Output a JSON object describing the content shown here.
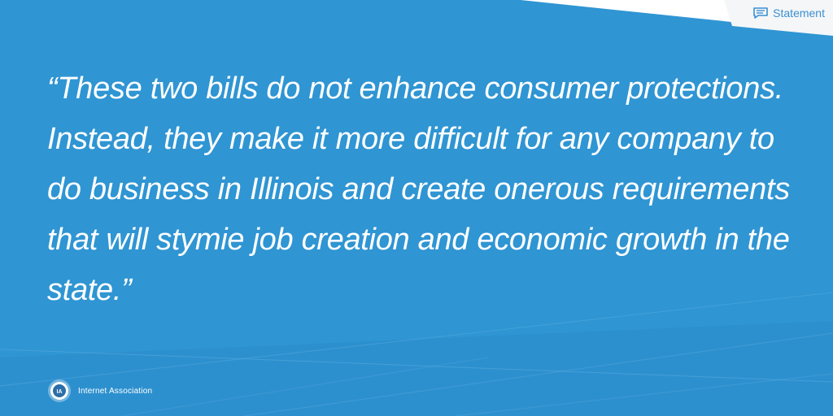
{
  "badge": {
    "label": "Statement",
    "icon": "speech-bubble-lines-icon"
  },
  "quote": {
    "text": "“These two bills do not enhance consumer protections. Instead, they make it more difficult for any company to do business in Illinois and create onerous requirements that will stymie job creation and economic growth in the state.”"
  },
  "brand": {
    "name": "Internet Association",
    "logo_text": "IA",
    "logo_icon": "internet-association-logo-icon"
  },
  "colors": {
    "background": "#2f95d3",
    "badge_text": "#3b8fd0",
    "text": "#ffffff"
  }
}
